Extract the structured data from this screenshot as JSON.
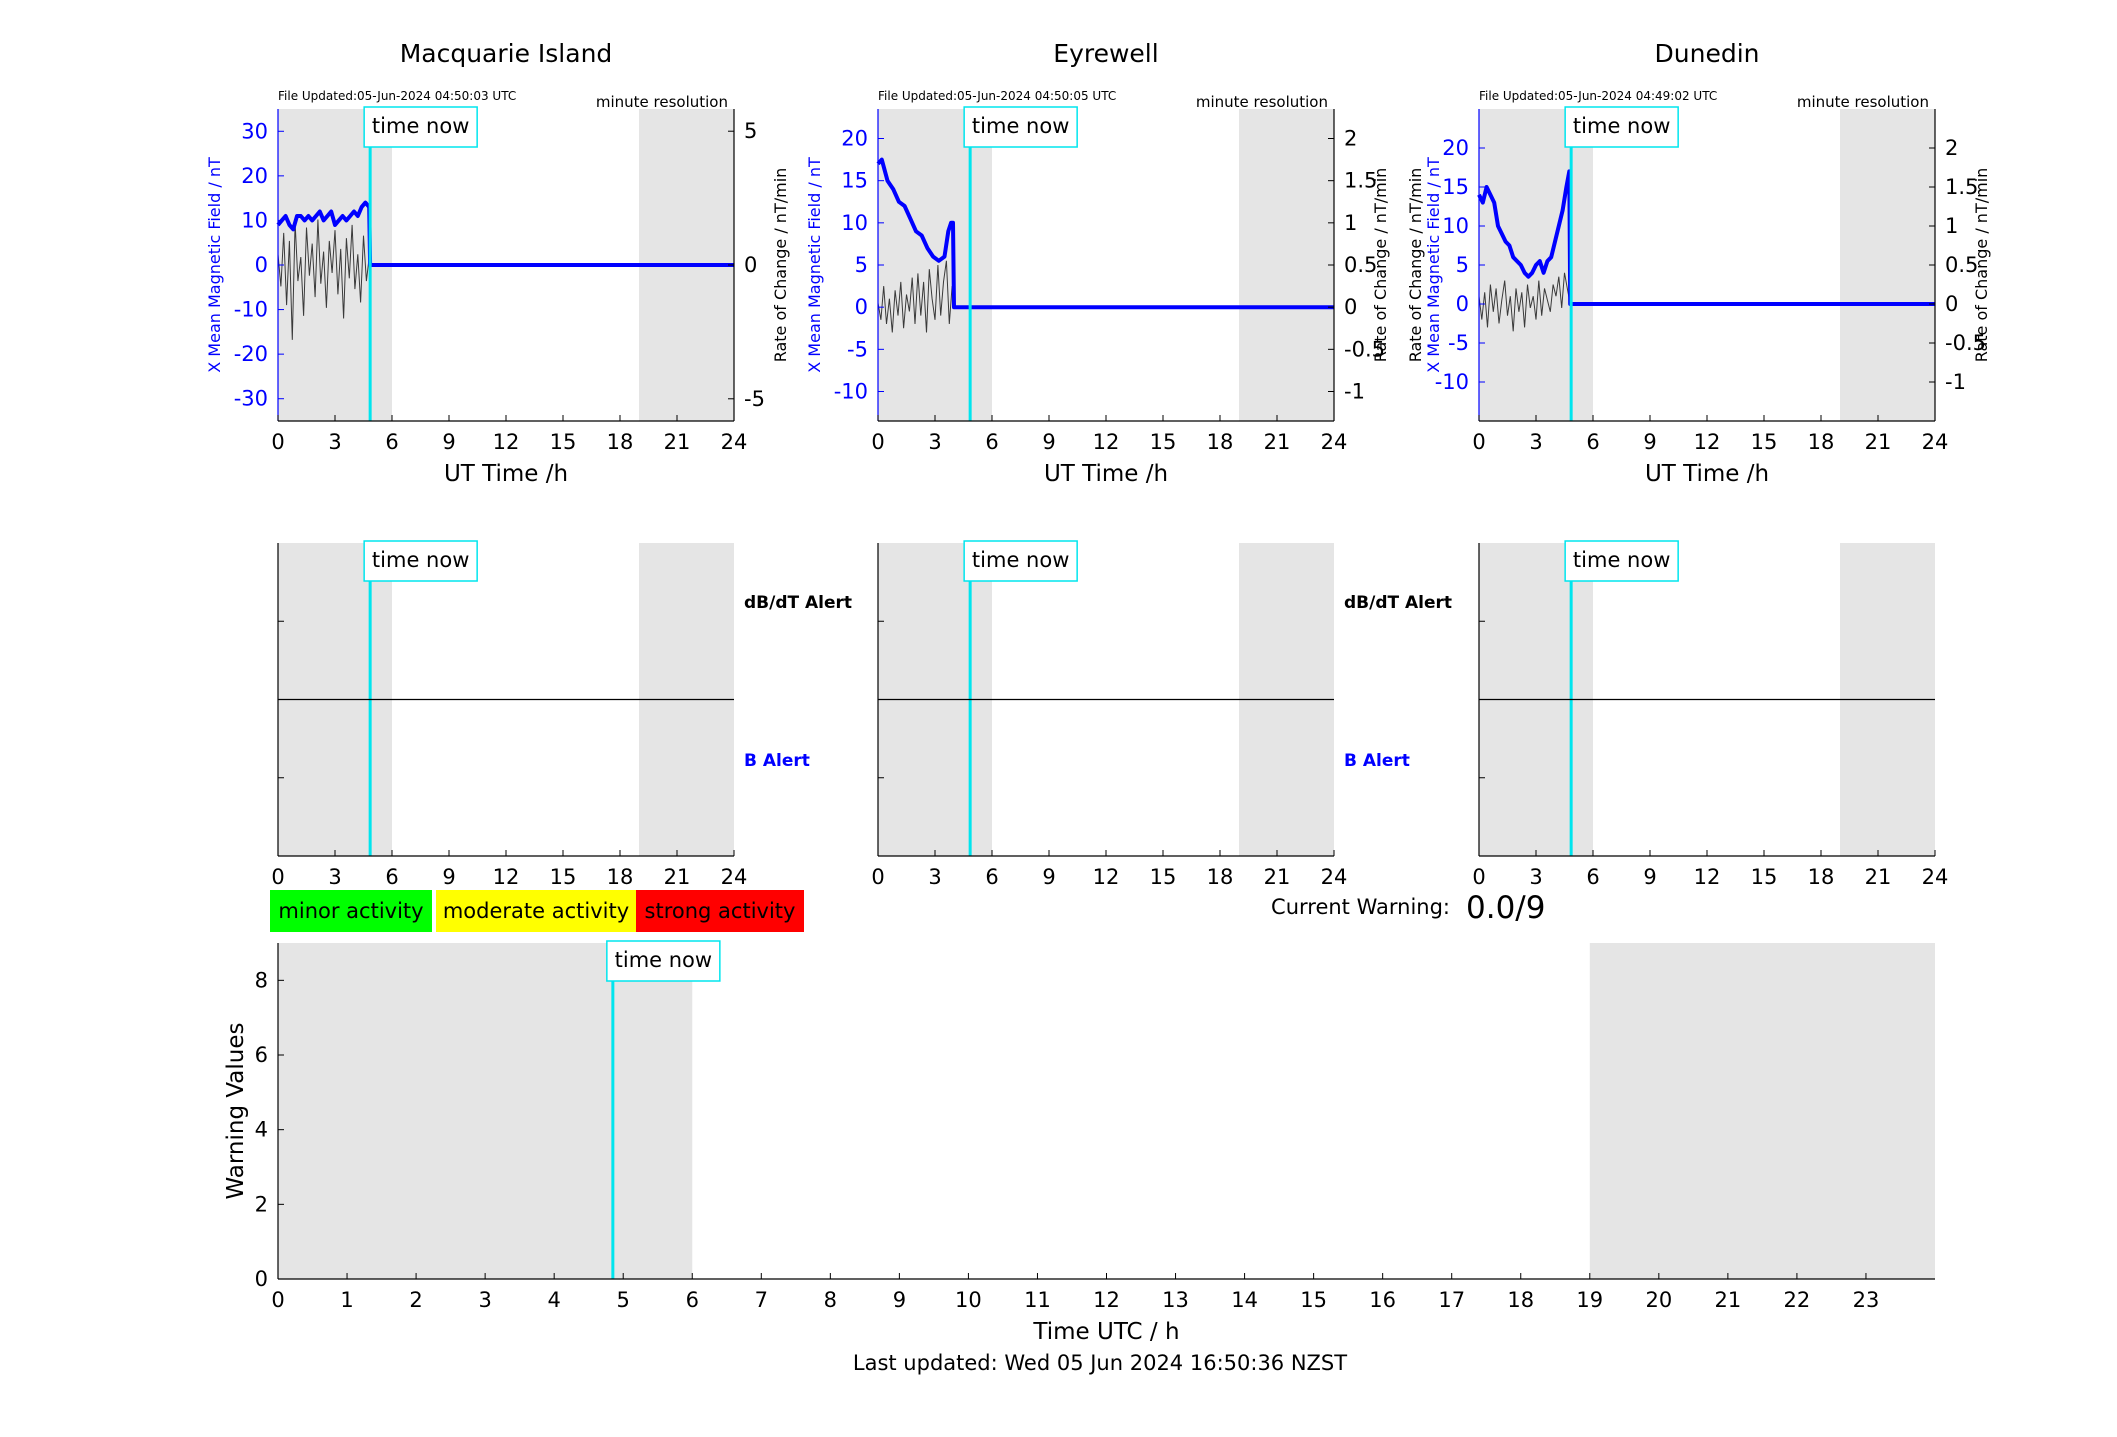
{
  "resolution_label": "minute resolution",
  "time_now_label": "time now",
  "dbdt_alert_label": "dB/dT Alert",
  "b_alert_label": "B Alert",
  "legend": [
    {
      "label": "minor activity",
      "color": "#00ff00"
    },
    {
      "label": "moderate activity",
      "color": "#ffff00"
    },
    {
      "label": "strong activity",
      "color": "#ff0000"
    }
  ],
  "current_warning": {
    "label": "Current Warning:",
    "value": "0.0/9"
  },
  "last_updated": "Last updated: Wed 05 Jun 2024 16:50:36 NZST",
  "colors": {
    "field": "#0000ff",
    "rate": "#000000",
    "time_now": "#00e5ee",
    "night": "#e5e5e5"
  },
  "chart_data": [
    {
      "type": "line",
      "title": "Macquarie Island",
      "file_updated": "File Updated:05-Jun-2024 04:50:03 UTC",
      "xlabel": "UT Time /h",
      "ylabel_left": "X Mean Magnetic Field / nT",
      "ylabel_right": "Rate of Change / nT/min",
      "xlim": [
        0,
        24
      ],
      "xticks": [
        0,
        3,
        6,
        9,
        12,
        15,
        18,
        21,
        24
      ],
      "ylim_left": [
        -35,
        35
      ],
      "yticks_left": [
        -30,
        -20,
        -10,
        0,
        10,
        20,
        30
      ],
      "ylim_right": [
        -5.83,
        5.83
      ],
      "yticks_right": [
        -5,
        0,
        5
      ],
      "time_now": 4.85,
      "night_shading": [
        [
          0,
          6
        ],
        [
          19,
          24
        ]
      ],
      "series": [
        {
          "name": "X Mean Magnetic Field",
          "axis": "left",
          "x": [
            0,
            0.2,
            0.4,
            0.6,
            0.8,
            1.0,
            1.2,
            1.4,
            1.6,
            1.8,
            2.0,
            2.2,
            2.4,
            2.6,
            2.8,
            3.0,
            3.2,
            3.4,
            3.6,
            3.8,
            4.0,
            4.2,
            4.4,
            4.6,
            4.8,
            4.85,
            24
          ],
          "y": [
            9,
            10,
            11,
            9,
            8,
            11,
            11,
            10,
            11,
            10,
            11,
            12,
            10,
            11,
            12,
            9,
            10,
            11,
            10,
            11,
            12,
            11,
            13,
            14,
            13,
            0,
            0
          ]
        },
        {
          "name": "Rate of Change",
          "axis": "right",
          "x": [
            0,
            0.15,
            0.3,
            0.45,
            0.6,
            0.75,
            0.9,
            1.05,
            1.2,
            1.35,
            1.5,
            1.65,
            1.8,
            1.95,
            2.1,
            2.25,
            2.4,
            2.55,
            2.7,
            2.85,
            3.0,
            3.15,
            3.3,
            3.45,
            3.6,
            3.75,
            3.9,
            4.05,
            4.2,
            4.35,
            4.5,
            4.65,
            4.8,
            4.85,
            24
          ],
          "y": [
            0.4,
            -0.8,
            1.2,
            -1.5,
            0.9,
            -2.8,
            1.6,
            -0.6,
            0.3,
            -1.9,
            1.4,
            -0.4,
            0.8,
            -1.2,
            1.7,
            -0.7,
            0.5,
            -1.6,
            0.9,
            -0.3,
            1.3,
            -1.1,
            0.6,
            -2.0,
            1.0,
            -0.5,
            1.5,
            -0.9,
            0.4,
            -1.4,
            1.1,
            -0.6,
            0.3,
            0,
            0
          ]
        }
      ]
    },
    {
      "type": "line",
      "title": "Eyrewell",
      "file_updated": "File Updated:05-Jun-2024 04:50:05 UTC",
      "xlabel": "UT Time /h",
      "ylabel_left": "X Mean Magnetic Field / nT",
      "ylabel_right": "Rate of Change / nT/min",
      "xlim": [
        0,
        24
      ],
      "xticks": [
        0,
        3,
        6,
        9,
        12,
        15,
        18,
        21,
        24
      ],
      "ylim_left": [
        -13.5,
        23.5
      ],
      "yticks_left": [
        -10,
        -5,
        0,
        5,
        10,
        15,
        20
      ],
      "ylim_right": [
        -1.35,
        2.35
      ],
      "yticks_right": [
        -1,
        -0.5,
        0,
        0.5,
        1,
        1.5,
        2
      ],
      "time_now": 4.85,
      "night_shading": [
        [
          0,
          6
        ],
        [
          19,
          24
        ]
      ],
      "series": [
        {
          "name": "X Mean Magnetic Field",
          "axis": "left",
          "x": [
            0,
            0.2,
            0.5,
            0.8,
            1.1,
            1.4,
            1.7,
            2.0,
            2.3,
            2.6,
            2.9,
            3.2,
            3.5,
            3.7,
            3.85,
            3.95,
            4.0,
            24
          ],
          "y": [
            17,
            17.5,
            15,
            14,
            12.5,
            12,
            10.5,
            9,
            8.5,
            7,
            6,
            5.5,
            6,
            9,
            10,
            10,
            0,
            0
          ]
        },
        {
          "name": "Rate of Change",
          "axis": "right",
          "x": [
            0,
            0.15,
            0.3,
            0.45,
            0.6,
            0.75,
            0.9,
            1.05,
            1.2,
            1.35,
            1.5,
            1.65,
            1.8,
            1.95,
            2.1,
            2.25,
            2.4,
            2.55,
            2.7,
            2.85,
            3.0,
            3.15,
            3.3,
            3.45,
            3.6,
            3.75,
            3.9,
            4.0,
            24
          ],
          "y": [
            0.05,
            -0.15,
            0.25,
            -0.2,
            0.1,
            -0.3,
            0.2,
            -0.1,
            0.3,
            -0.25,
            0.15,
            -0.05,
            0.35,
            -0.2,
            0.4,
            -0.1,
            0.3,
            -0.3,
            0.45,
            0.1,
            -0.15,
            0.5,
            -0.1,
            0.3,
            0.55,
            -0.2,
            0.25,
            0,
            0
          ]
        }
      ]
    },
    {
      "type": "line",
      "title": "Dunedin",
      "file_updated": "File Updated:05-Jun-2024 04:49:02 UTC",
      "xlabel": "UT Time /h",
      "ylabel_left": "Rate of Change / nT/min",
      "ylabel_left2": "X Mean Magnetic Field / nT",
      "ylabel_right": "Rate of Change / nT/min",
      "xlim": [
        0,
        24
      ],
      "xticks": [
        0,
        3,
        6,
        9,
        12,
        15,
        18,
        21,
        24
      ],
      "ylim_left": [
        -15,
        25
      ],
      "yticks_left": [
        -10,
        -5,
        0,
        5,
        10,
        15,
        20
      ],
      "ylim_right": [
        -1.5,
        2.5
      ],
      "yticks_right": [
        -1,
        -0.5,
        0,
        0.5,
        1,
        1.5,
        2
      ],
      "time_now": 4.85,
      "night_shading": [
        [
          0,
          6
        ],
        [
          19,
          24
        ]
      ],
      "series": [
        {
          "name": "X Mean Magnetic Field",
          "axis": "left",
          "x": [
            0,
            0.2,
            0.4,
            0.6,
            0.8,
            1.0,
            1.2,
            1.4,
            1.6,
            1.8,
            2.0,
            2.2,
            2.4,
            2.6,
            2.8,
            3.0,
            3.2,
            3.4,
            3.6,
            3.8,
            4.0,
            4.2,
            4.4,
            4.6,
            4.75,
            4.8,
            24
          ],
          "y": [
            14,
            13,
            15,
            14,
            13,
            10,
            9,
            8,
            7.5,
            6,
            5.5,
            5,
            4,
            3.5,
            4,
            5,
            5.5,
            4,
            5.5,
            6,
            8,
            10,
            12,
            15,
            17,
            0,
            0
          ]
        },
        {
          "name": "Rate of Change",
          "axis": "right",
          "x": [
            0,
            0.15,
            0.3,
            0.45,
            0.6,
            0.75,
            0.9,
            1.05,
            1.2,
            1.35,
            1.5,
            1.65,
            1.8,
            1.95,
            2.1,
            2.25,
            2.4,
            2.55,
            2.7,
            2.85,
            3.0,
            3.15,
            3.3,
            3.45,
            3.6,
            3.75,
            3.9,
            4.05,
            4.2,
            4.35,
            4.5,
            4.65,
            4.8,
            24
          ],
          "y": [
            0.1,
            -0.2,
            0.15,
            -0.3,
            0.25,
            -0.1,
            0.2,
            -0.25,
            0.05,
            0.3,
            -0.15,
            0.1,
            -0.35,
            0.2,
            -0.1,
            0.15,
            -0.3,
            0.25,
            -0.05,
            0.1,
            -0.2,
            0.3,
            -0.15,
            0.2,
            0.05,
            -0.1,
            0.25,
            0.1,
            0.35,
            -0.05,
            0.4,
            0.2,
            0,
            0
          ]
        }
      ]
    },
    {
      "type": "line",
      "title": "",
      "station": "Macquarie Island",
      "xlim": [
        0,
        24
      ],
      "xticks": [
        0,
        3,
        6,
        9,
        12,
        15,
        18,
        21,
        24
      ],
      "time_now": 4.85,
      "night_shading": [
        [
          0,
          6
        ],
        [
          19,
          24
        ]
      ],
      "series": []
    },
    {
      "type": "line",
      "title": "",
      "station": "Eyrewell",
      "xlim": [
        0,
        24
      ],
      "xticks": [
        0,
        3,
        6,
        9,
        12,
        15,
        18,
        21,
        24
      ],
      "time_now": 4.85,
      "night_shading": [
        [
          0,
          6
        ],
        [
          19,
          24
        ]
      ],
      "series": []
    },
    {
      "type": "line",
      "title": "",
      "station": "Dunedin",
      "xlim": [
        0,
        24
      ],
      "xticks": [
        0,
        3,
        6,
        9,
        12,
        15,
        18,
        21,
        24
      ],
      "time_now": 4.85,
      "night_shading": [
        [
          0,
          6
        ],
        [
          19,
          24
        ]
      ],
      "series": []
    },
    {
      "type": "bar",
      "title": "",
      "xlabel": "Time UTC / h",
      "ylabel": "Warning Values",
      "xlim": [
        0,
        24
      ],
      "xticks": [
        0,
        1,
        2,
        3,
        4,
        5,
        6,
        7,
        8,
        9,
        10,
        11,
        12,
        13,
        14,
        15,
        16,
        17,
        18,
        19,
        20,
        21,
        22,
        23
      ],
      "ylim": [
        0,
        9
      ],
      "yticks": [
        0,
        2,
        4,
        6,
        8
      ],
      "time_now": 4.85,
      "night_shading": [
        [
          0,
          6
        ],
        [
          19,
          24
        ]
      ],
      "values": []
    }
  ]
}
